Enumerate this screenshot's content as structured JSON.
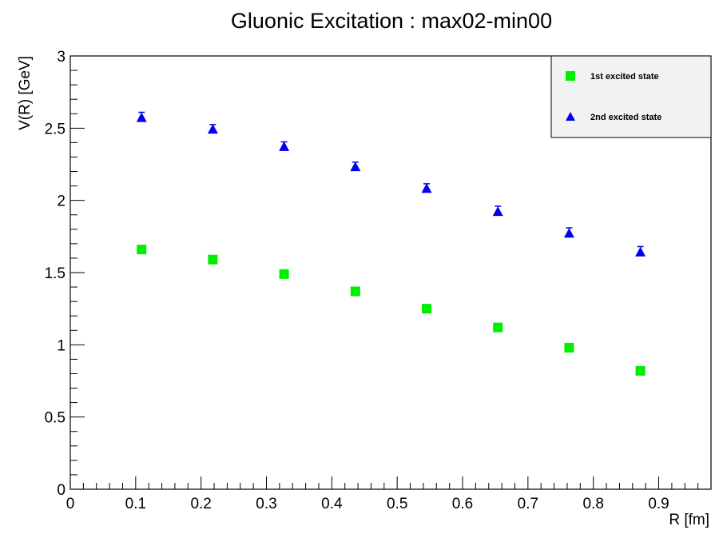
{
  "chart_data": {
    "type": "scatter",
    "title": "Gluonic Excitation : max02-min00",
    "xlabel": "R [fm]",
    "ylabel": "V(R) [GeV]",
    "xlim": [
      0,
      0.98
    ],
    "ylim": [
      0,
      3
    ],
    "x_ticks": [
      "0",
      "0.1",
      "0.2",
      "0.3",
      "0.4",
      "0.5",
      "0.6",
      "0.7",
      "0.8",
      "0.9"
    ],
    "y_ticks": [
      "0",
      "0.5",
      "1",
      "1.5",
      "2",
      "2.5",
      "3"
    ],
    "grid": false,
    "legend_position": "top-right",
    "series": [
      {
        "name": "1st excited state",
        "marker": "square",
        "color": "#00ee00",
        "x": [
          0.109,
          0.218,
          0.327,
          0.436,
          0.545,
          0.654,
          0.763,
          0.872
        ],
        "y": [
          1.66,
          1.59,
          1.49,
          1.37,
          1.25,
          1.12,
          0.98,
          0.82
        ],
        "err": [
          0.01,
          0.01,
          0.01,
          0.01,
          0.01,
          0.01,
          0.01,
          0.01
        ]
      },
      {
        "name": "2nd excited state",
        "marker": "triangle",
        "color": "#0000ee",
        "x": [
          0.109,
          0.218,
          0.327,
          0.436,
          0.545,
          0.654,
          0.763,
          0.872
        ],
        "y": [
          2.57,
          2.49,
          2.37,
          2.23,
          2.08,
          1.92,
          1.77,
          1.64
        ],
        "err": [
          0.04,
          0.035,
          0.035,
          0.035,
          0.035,
          0.04,
          0.04,
          0.04
        ]
      }
    ]
  }
}
